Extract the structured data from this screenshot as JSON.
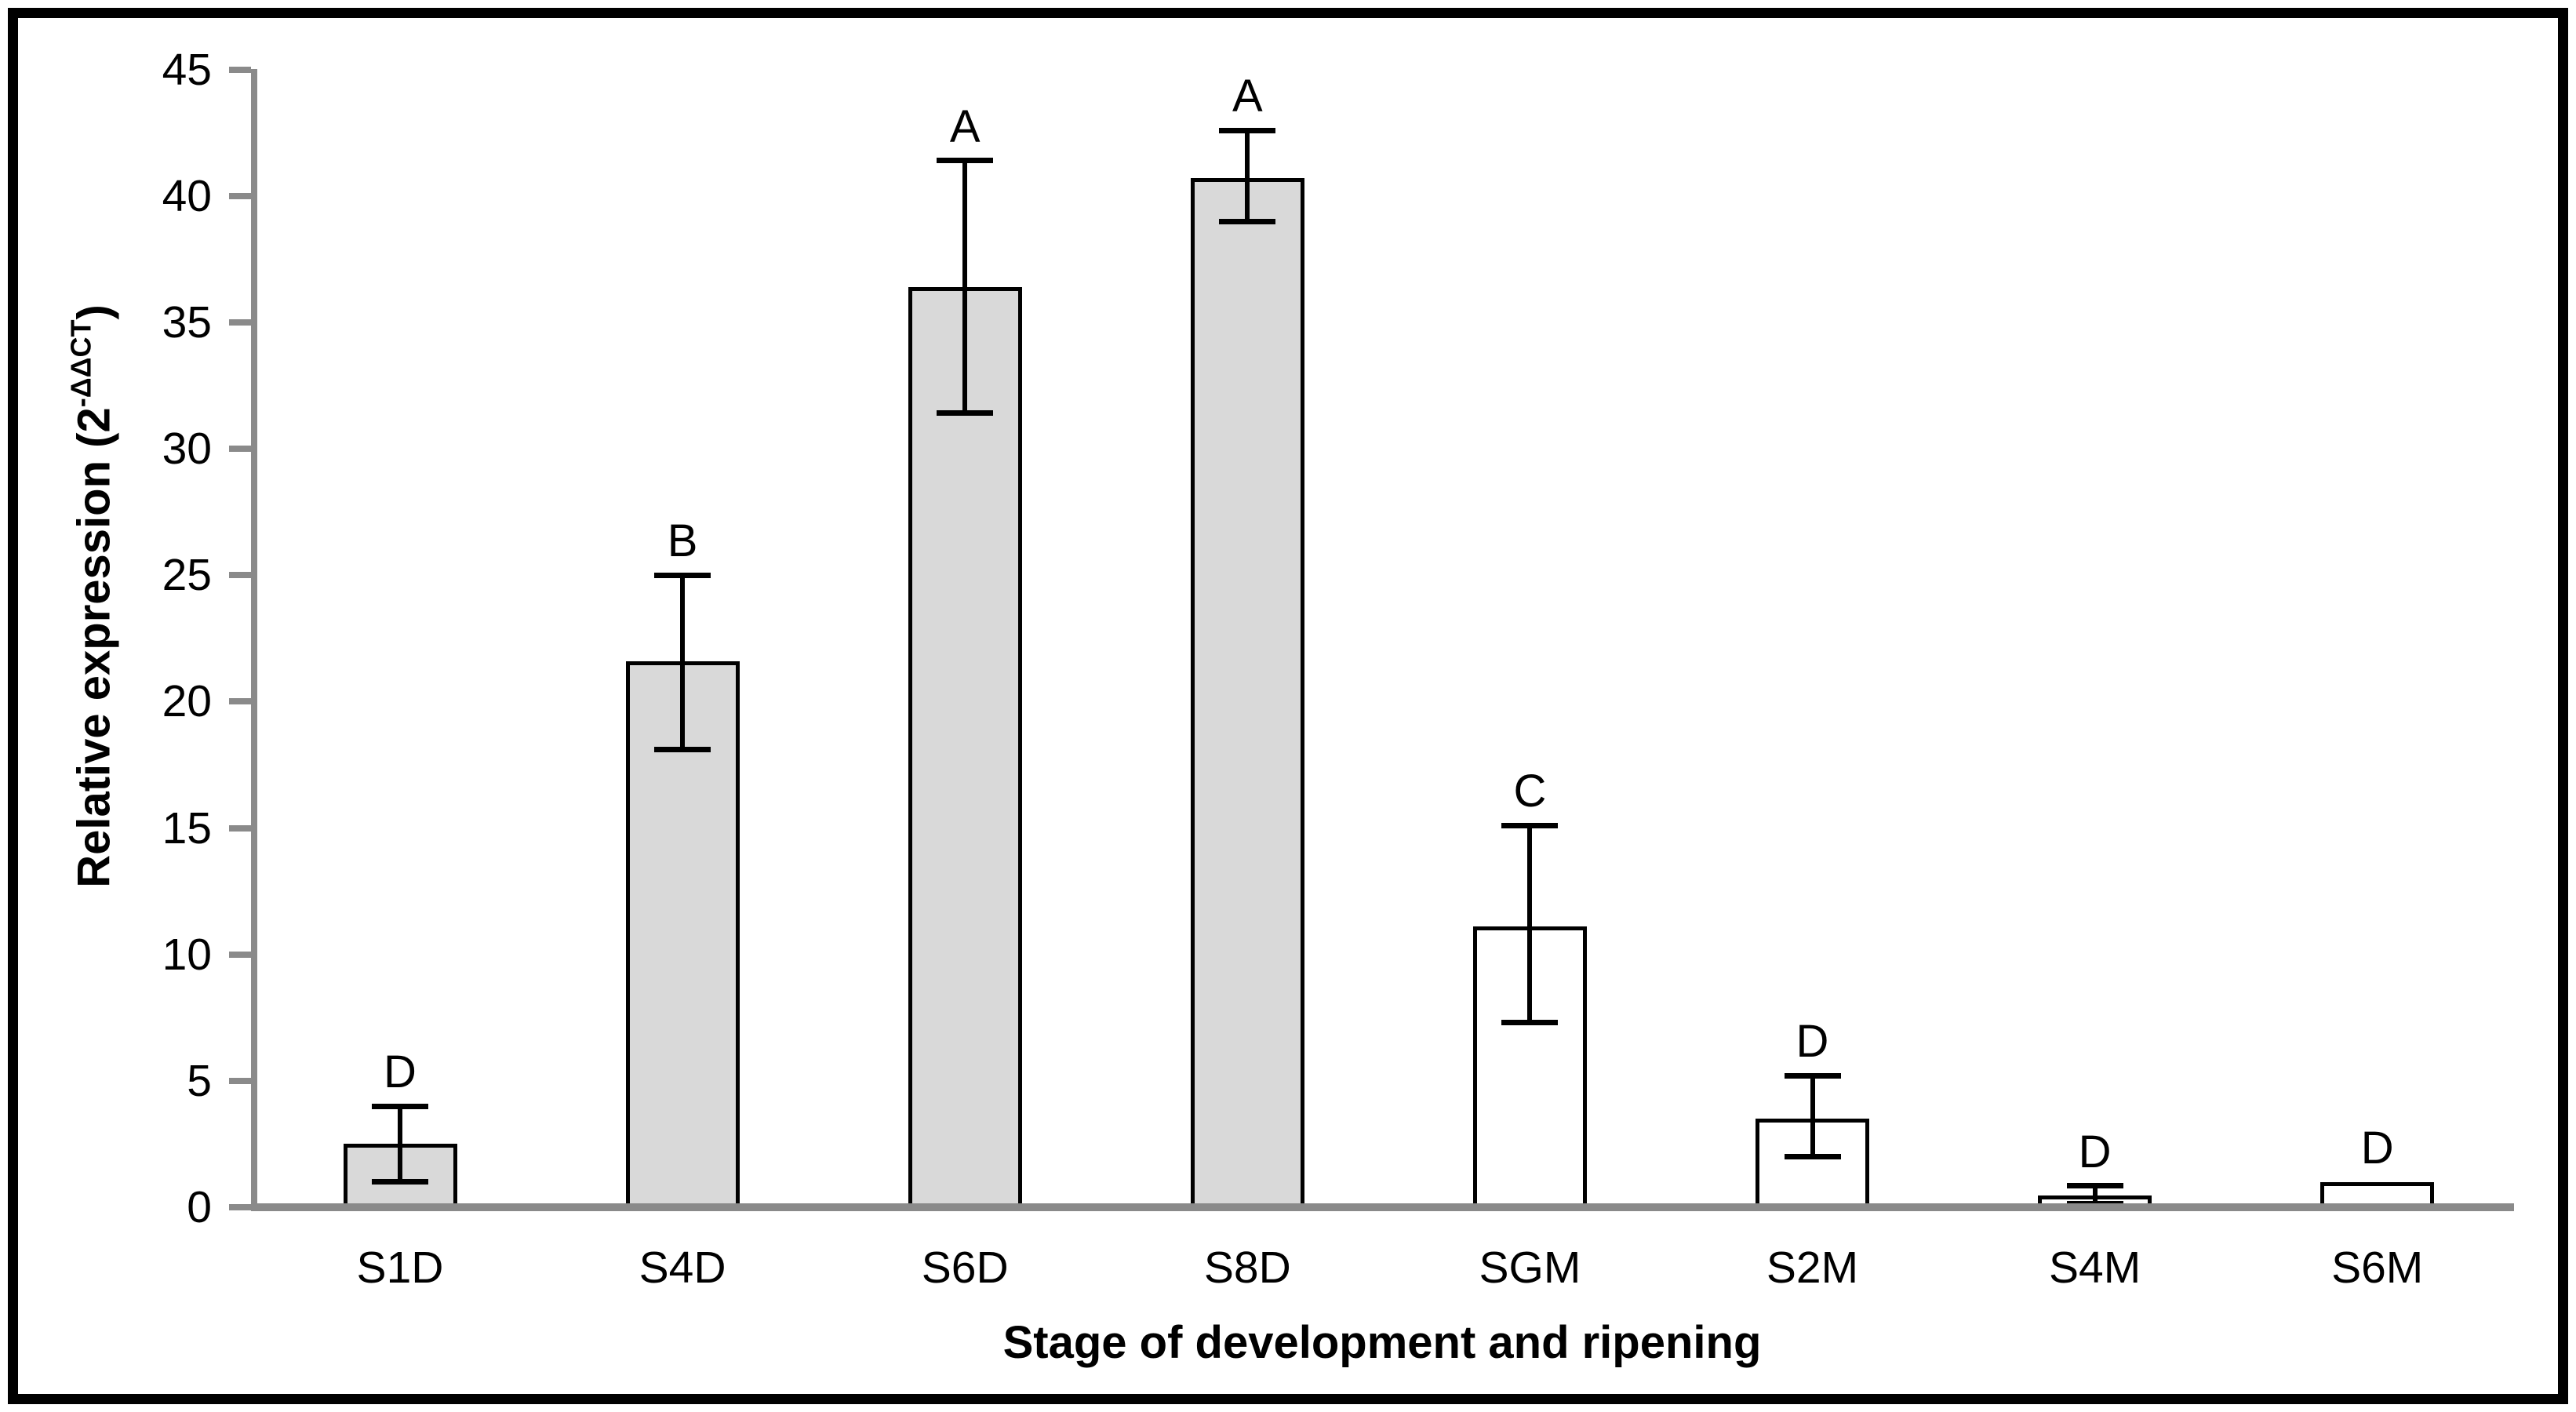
{
  "colors": {
    "axis_gray": "#8a8a8a",
    "bar_border": "#000000",
    "bar_fill_development": "#d9d9d9",
    "bar_fill_ripening": "#ffffff",
    "background": "#ffffff",
    "frame_border": "#000000"
  },
  "chart_data": {
    "type": "bar",
    "title": "",
    "xlabel": "Stage of development and ripening",
    "ylabel_base": "Relative expression (2",
    "ylabel_sup": "-ΔΔCT",
    "ylabel_close": ")",
    "categories": [
      "S1D",
      "S4D",
      "S6D",
      "S8D",
      "SGM",
      "S2M",
      "S4M",
      "S6M"
    ],
    "values": [
      2.5,
      21.6,
      36.4,
      40.7,
      11.1,
      3.5,
      0.45,
      1.0
    ],
    "error_low": [
      1.0,
      18.1,
      31.4,
      39.0,
      7.3,
      2.0,
      0.15,
      null
    ],
    "error_high": [
      4.0,
      25.0,
      41.4,
      42.6,
      15.1,
      5.2,
      0.85,
      null
    ],
    "letters": [
      "D",
      "B",
      "A",
      "A",
      "C",
      "D",
      "D",
      "D"
    ],
    "bar_fill": [
      "#d9d9d9",
      "#d9d9d9",
      "#d9d9d9",
      "#d9d9d9",
      "#ffffff",
      "#ffffff",
      "#ffffff",
      "#ffffff"
    ],
    "yticks": [
      "0",
      "5",
      "10",
      "15",
      "20",
      "25",
      "30",
      "35",
      "40",
      "45"
    ],
    "ylim": [
      0,
      45
    ],
    "grid": false,
    "legend": "none",
    "error_bars": true
  }
}
